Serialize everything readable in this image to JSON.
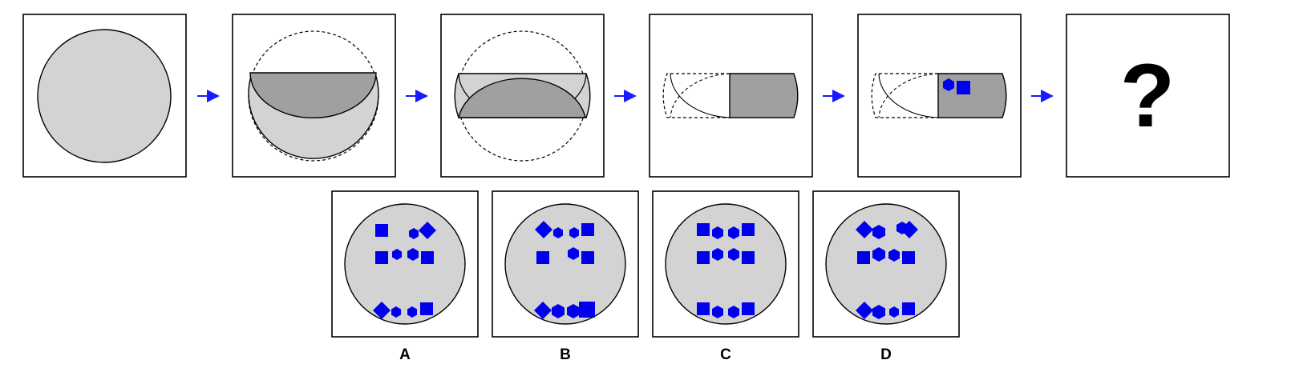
{
  "question_mark": "?",
  "options": [
    {
      "label": "A"
    },
    {
      "label": "B"
    },
    {
      "label": "C"
    },
    {
      "label": "D"
    }
  ],
  "colors": {
    "paper_light": "#d3d3d3",
    "paper_dark": "#a0a0a0",
    "hole": "#0000ee",
    "arrow": "#1a1aff",
    "frame": "#000000"
  }
}
